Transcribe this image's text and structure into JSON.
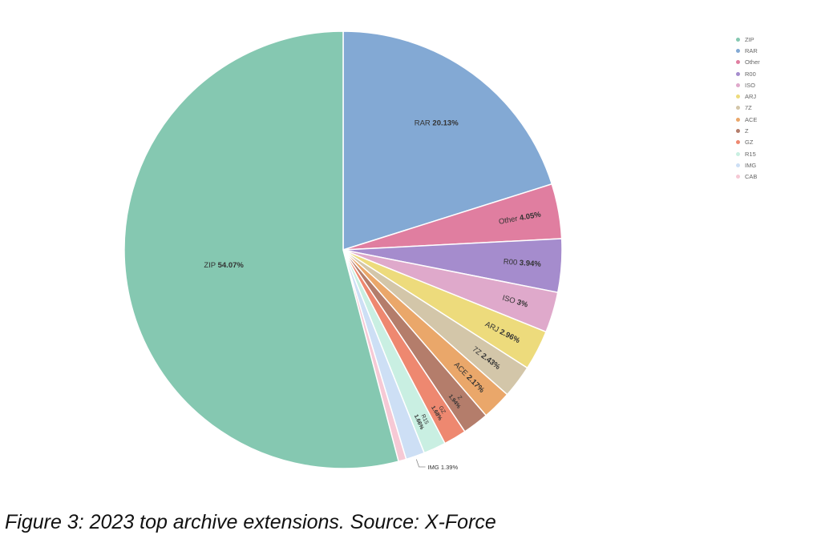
{
  "caption": "Figure 3: 2023 top archive extensions. Source: X-Force",
  "chart_data": {
    "type": "pie",
    "start": "top, clockwise",
    "slices": [
      {
        "label": "RAR",
        "value": 20.13,
        "value_text": "20.13%",
        "color": "#83a9d4"
      },
      {
        "label": "Other",
        "value": 4.05,
        "value_text": "4.05%",
        "color": "#e07ea0"
      },
      {
        "label": "R00",
        "value": 3.94,
        "value_text": "3.94%",
        "color": "#a58ccd"
      },
      {
        "label": "ISO",
        "value": 3,
        "value_text": "3%",
        "color": "#dfa9cb"
      },
      {
        "label": "ARJ",
        "value": 2.96,
        "value_text": "2.96%",
        "color": "#eddb7c"
      },
      {
        "label": "7Z",
        "value": 2.43,
        "value_text": "2.43%",
        "color": "#d3c6a9"
      },
      {
        "label": "ACE",
        "value": 2.17,
        "value_text": "2.17%",
        "color": "#eaa76a"
      },
      {
        "label": "Z",
        "value": 1.94,
        "value_text": "1.94%",
        "color": "#b47d6b"
      },
      {
        "label": "GZ",
        "value": 1.68,
        "value_text": "1.68%",
        "color": "#ee8870"
      },
      {
        "label": "R15",
        "value": 1.66,
        "value_text": "1.66%",
        "color": "#c9efe2"
      },
      {
        "label": "IMG",
        "value": 1.39,
        "value_text": "1.39%",
        "color": "#cddff5"
      },
      {
        "label": "CAB",
        "value": 0.58,
        "value_text": "",
        "color": "#f6c9d5"
      },
      {
        "label": "ZIP",
        "value": 54.07,
        "value_text": "54.07%",
        "color": "#85c8b1"
      }
    ],
    "legend": {
      "placement": "top-right",
      "items": [
        {
          "label": "ZIP",
          "color": "#85c8b1"
        },
        {
          "label": "RAR",
          "color": "#83a9d4"
        },
        {
          "label": "Other",
          "color": "#e07ea0"
        },
        {
          "label": "R00",
          "color": "#a58ccd"
        },
        {
          "label": "ISO",
          "color": "#dfa9cb"
        },
        {
          "label": "ARJ",
          "color": "#eddb7c"
        },
        {
          "label": "7Z",
          "color": "#d3c6a9"
        },
        {
          "label": "ACE",
          "color": "#eaa76a"
        },
        {
          "label": "Z",
          "color": "#b47d6b"
        },
        {
          "label": "GZ",
          "color": "#ee8870"
        },
        {
          "label": "R15",
          "color": "#c9efe2"
        },
        {
          "label": "IMG",
          "color": "#cddff5"
        },
        {
          "label": "CAB",
          "color": "#f6c9d5"
        }
      ]
    }
  }
}
